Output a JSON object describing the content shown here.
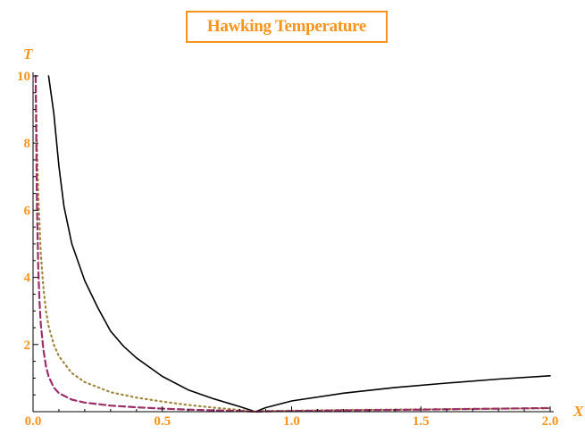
{
  "chart_data": {
    "type": "line",
    "title": "Hawking Temperature",
    "xlabel": "X",
    "ylabel": "T",
    "xlim": [
      0,
      2.0
    ],
    "ylim": [
      0,
      10
    ],
    "x_ticks": [
      "0.0",
      "0.5",
      "1.0",
      "1.5",
      "2.0"
    ],
    "y_ticks": [
      "2",
      "4",
      "6",
      "8",
      "10"
    ],
    "grid": false,
    "colors": {
      "title": "#f7941d",
      "labels": "#f7941d",
      "axes": "#000000"
    },
    "series": [
      {
        "style": "solid",
        "color": "#000000",
        "x": [
          0.06,
          0.08,
          0.1,
          0.12,
          0.15,
          0.2,
          0.25,
          0.3,
          0.35,
          0.4,
          0.5,
          0.6,
          0.7,
          0.8,
          0.86,
          0.9,
          1.0,
          1.2,
          1.4,
          1.6,
          1.8,
          2.0
        ],
        "y": [
          10.0,
          8.9,
          7.3,
          6.1,
          5.0,
          3.9,
          3.1,
          2.4,
          1.95,
          1.6,
          1.05,
          0.65,
          0.38,
          0.15,
          0.0,
          0.12,
          0.32,
          0.55,
          0.72,
          0.85,
          0.97,
          1.07
        ]
      },
      {
        "style": "dotted",
        "color": "#a0863c",
        "x": [
          0.01,
          0.015,
          0.02,
          0.03,
          0.04,
          0.05,
          0.06,
          0.08,
          0.1,
          0.15,
          0.2,
          0.3,
          0.4,
          0.5,
          0.6,
          0.7,
          0.8,
          0.86,
          0.9,
          1.0,
          1.2,
          1.5,
          1.8,
          2.0
        ],
        "y": [
          10.0,
          8.0,
          6.5,
          4.7,
          3.7,
          3.0,
          2.55,
          2.0,
          1.65,
          1.15,
          0.88,
          0.58,
          0.42,
          0.3,
          0.2,
          0.12,
          0.05,
          0.0,
          0.02,
          0.03,
          0.05,
          0.07,
          0.09,
          0.1
        ]
      },
      {
        "style": "dashed",
        "color": "#9b2f6a",
        "x": [
          0.01,
          0.015,
          0.02,
          0.025,
          0.03,
          0.04,
          0.05,
          0.06,
          0.08,
          0.1,
          0.15,
          0.2,
          0.3,
          0.4,
          0.5,
          0.6,
          0.7,
          0.8,
          0.86,
          0.9,
          1.0,
          1.2,
          1.5,
          1.8,
          2.0
        ],
        "y": [
          10.0,
          6.3,
          4.3,
          3.3,
          2.6,
          1.85,
          1.35,
          1.05,
          0.72,
          0.55,
          0.36,
          0.27,
          0.18,
          0.13,
          0.09,
          0.06,
          0.04,
          0.02,
          0.0,
          0.01,
          0.02,
          0.04,
          0.06,
          0.09,
          0.11
        ]
      }
    ]
  }
}
